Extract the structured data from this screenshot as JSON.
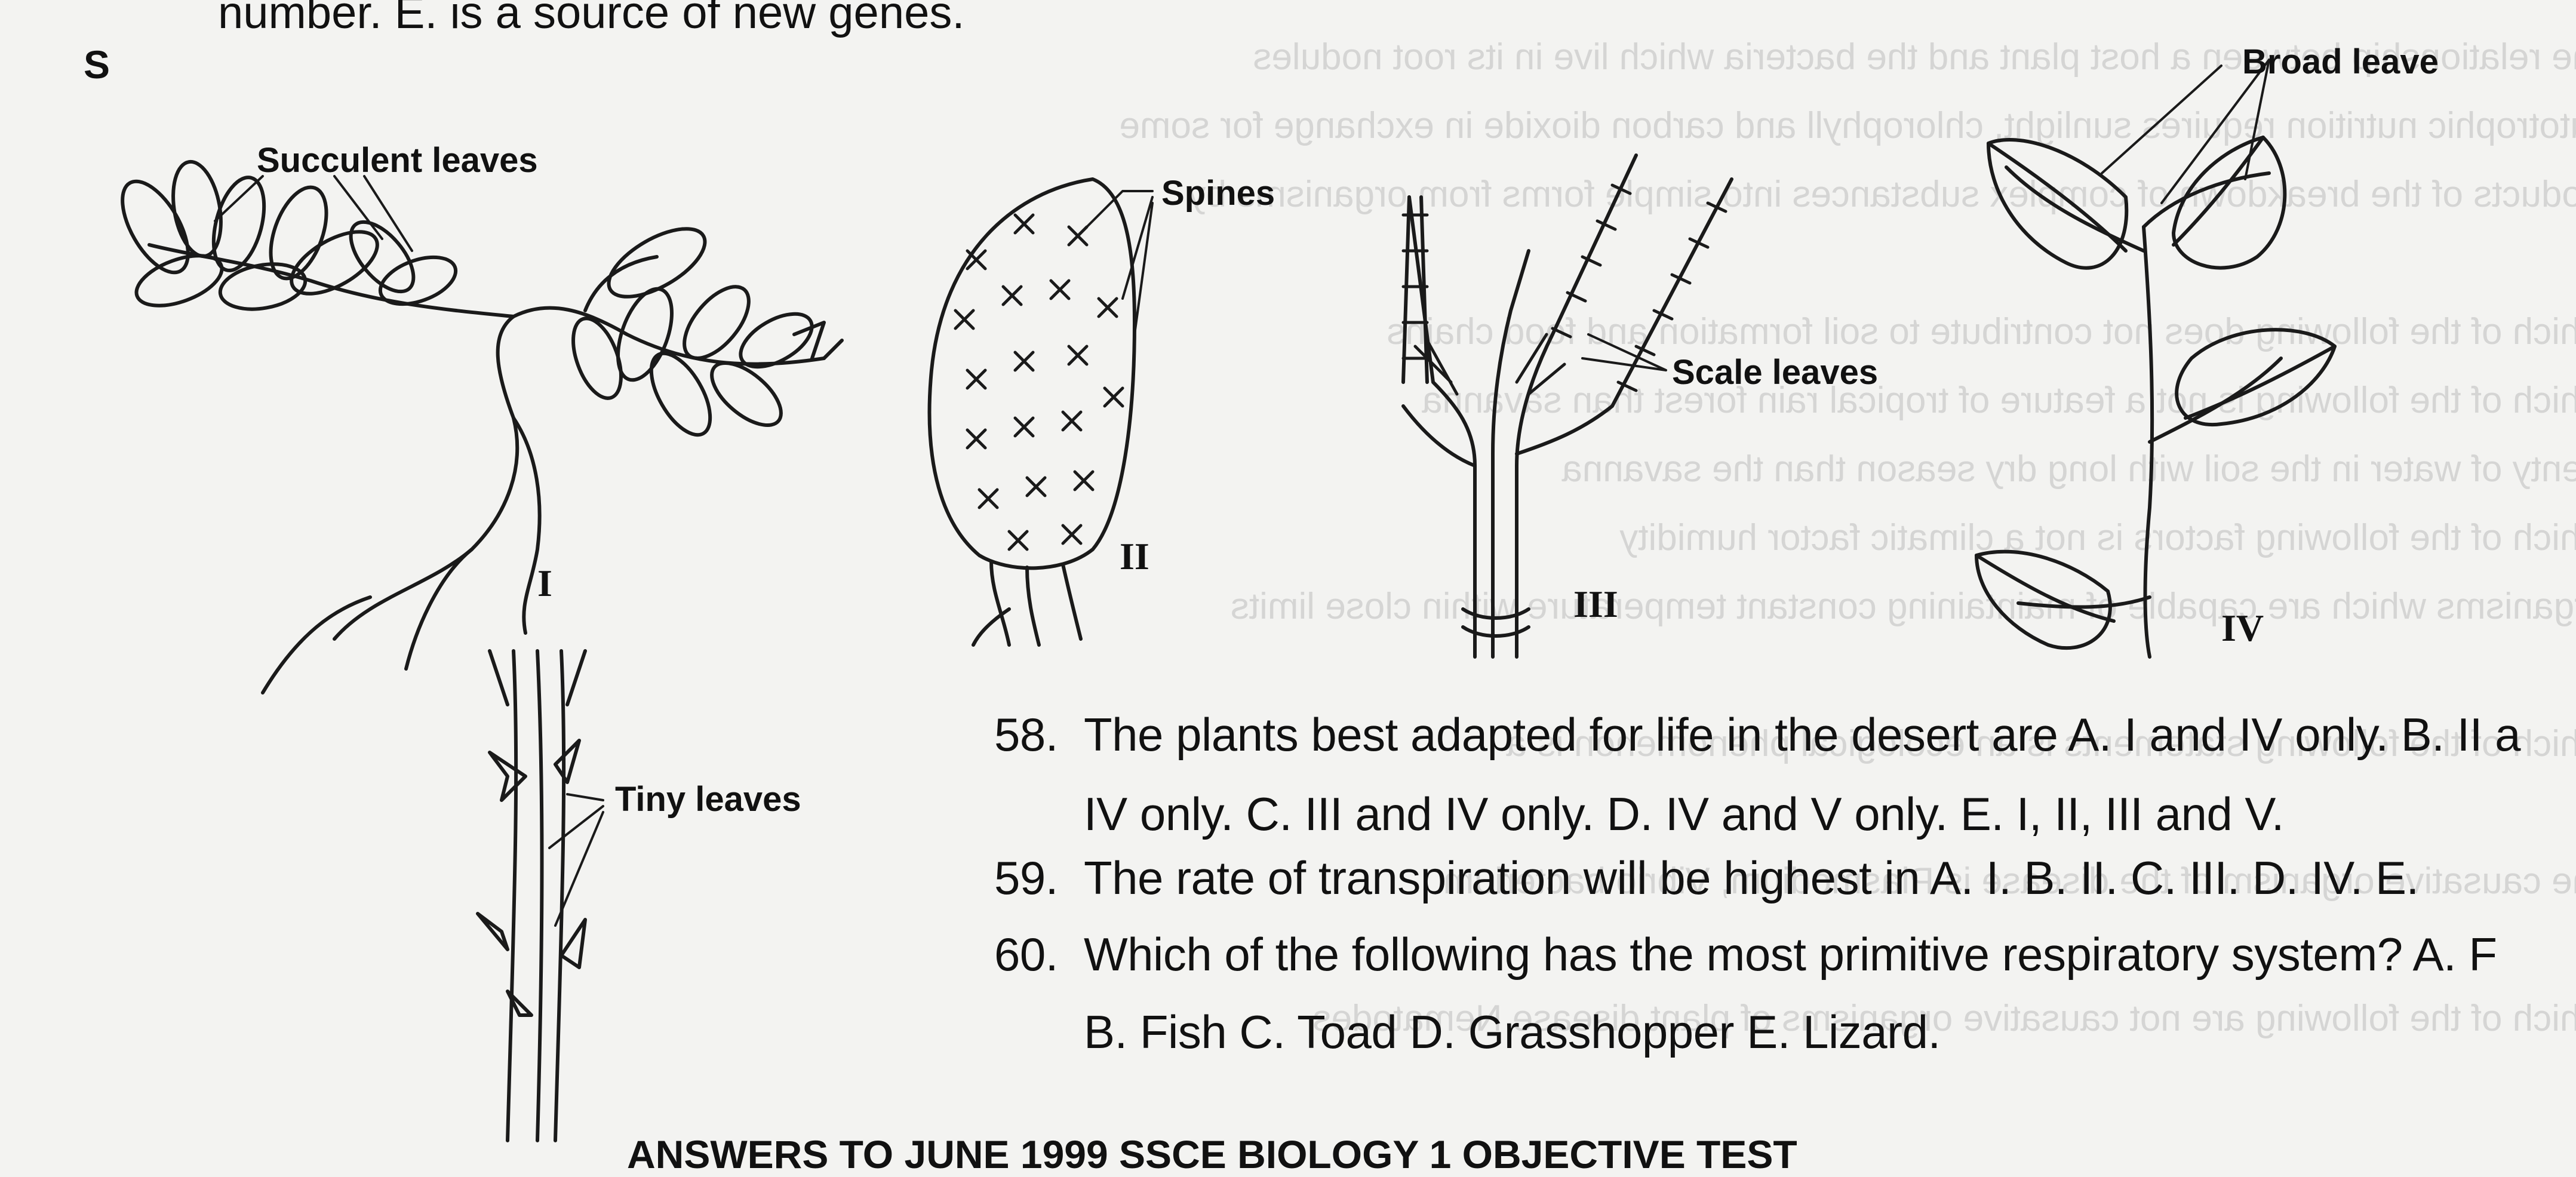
{
  "top_fragment": "number.  E. is a source of new genes.",
  "corner_fragment": "S",
  "labels": {
    "succulent": "Succulent leaves",
    "spines": "Spines",
    "scale": "Scale leaves",
    "broad": "Broad leave",
    "tiny": "Tiny leaves"
  },
  "roman": [
    "I",
    "II",
    "III",
    "IV"
  ],
  "questions": [
    {
      "number": "58.",
      "line1": "The plants best adapted for life in the desert are A. I and IV only.  B. II a",
      "line2": "IV only.  C. III and IV only.  D. IV and V only.  E. I, II, III and V."
    },
    {
      "number": "59.",
      "line1": "The rate of transpiration will be highest in A. I.  B. II.  C. III.  D. IV.  E."
    },
    {
      "number": "60.",
      "line1": "Which of the following has the most primitive respiratory system? A. F",
      "line2": "B. Fish  C. Toad  D. Grasshopper  E. Lizard."
    }
  ],
  "bottom_fragment": "ANSWERS TO JUNE 1999 SSCE BIOLOGY 1 OBJECTIVE TEST"
}
